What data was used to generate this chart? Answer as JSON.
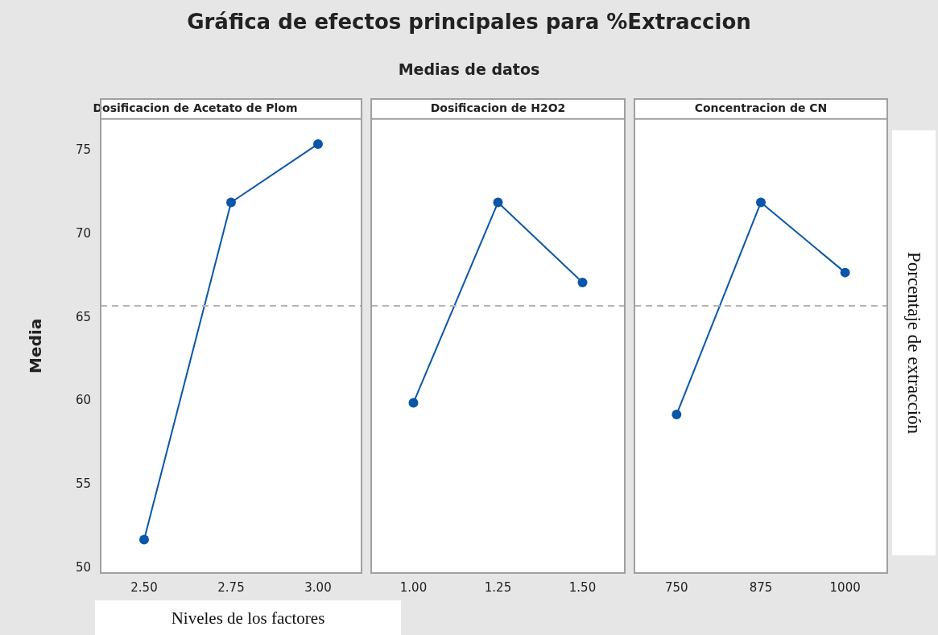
{
  "chart_data": [
    {
      "type": "line",
      "title": "Dosificacion de Acetato de Plom",
      "annotations": [
        "Gráfica de efectos principales para %Extraccion",
        "Medias de datos"
      ],
      "ylabel": "Media",
      "xlabel": "Niveles de los factores",
      "categories": [
        "2.50",
        "2.75",
        "3.00"
      ],
      "series": [
        {
          "color": "#0b56a8",
          "values": [
            51.7,
            71.9,
            75.4
          ]
        }
      ],
      "ylim": [
        49.7,
        76.9
      ],
      "yticks": [
        50,
        55,
        60,
        65,
        70,
        75
      ],
      "ref_lines": [
        {
          "axis": "y",
          "value": 65.7,
          "color": "#b4b4b4",
          "line_style": "dashed"
        }
      ],
      "marker": "circle",
      "line_style": "solid",
      "grid": false,
      "legend": false
    },
    {
      "type": "line",
      "title": "Dosificacion de H2O2",
      "categories": [
        "1.00",
        "1.25",
        "1.50"
      ],
      "series": [
        {
          "color": "#0b56a8",
          "values": [
            59.9,
            71.9,
            67.1
          ]
        }
      ],
      "ylim": [
        49.7,
        76.9
      ],
      "tick_labels": "x",
      "ref_lines": [
        {
          "axis": "y",
          "value": 65.7,
          "color": "#b4b4b4",
          "line_style": "dashed"
        }
      ],
      "marker": "circle",
      "line_style": "solid",
      "grid": false,
      "legend": false
    },
    {
      "type": "line",
      "title": "Concentracion de CN",
      "y2label": "Porcentaje de extracción",
      "categories": [
        "750",
        "875",
        "1000"
      ],
      "series": [
        {
          "color": "#0b56a8",
          "values": [
            59.2,
            71.9,
            67.7
          ]
        }
      ],
      "ylim": [
        49.7,
        76.9
      ],
      "tick_labels": "x",
      "ref_lines": [
        {
          "axis": "y",
          "value": 65.7,
          "color": "#b4b4b4",
          "line_style": "dashed"
        }
      ],
      "marker": "circle",
      "line_style": "solid",
      "grid": false,
      "legend": false
    }
  ]
}
